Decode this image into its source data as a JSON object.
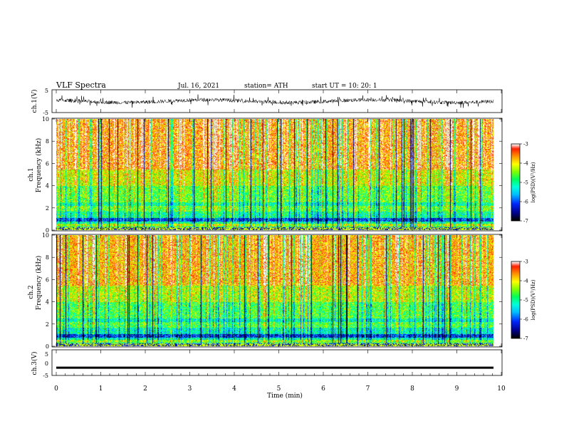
{
  "header": {
    "title": "VLF  Spectra",
    "date": "Jul.  16, 2021",
    "station": "station= ATH",
    "start": "start  UT  =    10: 20: 1"
  },
  "colors": {
    "scale": [
      "#000000",
      "#000080",
      "#0000ff",
      "#00a0ff",
      "#00ffff",
      "#00ff80",
      "#00ff00",
      "#80ff00",
      "#ffff00",
      "#ffa000",
      "#ff0000",
      "#ffffff"
    ]
  },
  "chart_data": [
    {
      "type": "line",
      "name": "ch1-waveform",
      "ylabel": "ch.1(V)",
      "ylim": [
        -5,
        5
      ],
      "yticks": [
        "5",
        "-5"
      ],
      "xlim": [
        0,
        10
      ],
      "description_values": "noisy waveform around 0 V, amplitude up to about ±2.5 V"
    },
    {
      "type": "heatmap",
      "name": "ch1-spectrogram",
      "ylabel_top": "ch.1",
      "ylabel": "Frequency (kHz)",
      "ylim": [
        0,
        10
      ],
      "yticks": [
        "0",
        "2",
        "4",
        "6",
        "8",
        "10"
      ],
      "xlim": [
        0,
        9.8
      ],
      "colorbar": {
        "label": "log(PSD)(V²/Hz)",
        "ticks": [
          "-3",
          "-4",
          "-5",
          "-6",
          "-7"
        ],
        "range": [
          -7,
          -3
        ]
      }
    },
    {
      "type": "heatmap",
      "name": "ch2-spectrogram",
      "ylabel_top": "ch.2",
      "ylabel": "Frequency (kHz)",
      "ylim": [
        0,
        10
      ],
      "yticks": [
        "0",
        "2",
        "4",
        "6",
        "8",
        "10"
      ],
      "xlim": [
        0,
        9.8
      ],
      "colorbar": {
        "label": "log(PSD)(V²/Hz)",
        "ticks": [
          "-3",
          "-4",
          "-5",
          "-6",
          "-7"
        ],
        "range": [
          -7,
          -3
        ]
      }
    },
    {
      "type": "line",
      "name": "ch3-waveform",
      "ylabel": "ch.3(V)",
      "ylim": [
        -5,
        5
      ],
      "yticks": [
        "5",
        "0",
        "-5"
      ],
      "xlim": [
        0,
        10
      ],
      "level": -1.5
    }
  ],
  "xaxis": {
    "label": "Time  (min)",
    "ticks": [
      "0",
      "1",
      "2",
      "3",
      "4",
      "5",
      "6",
      "7",
      "8",
      "9",
      "10"
    ]
  }
}
